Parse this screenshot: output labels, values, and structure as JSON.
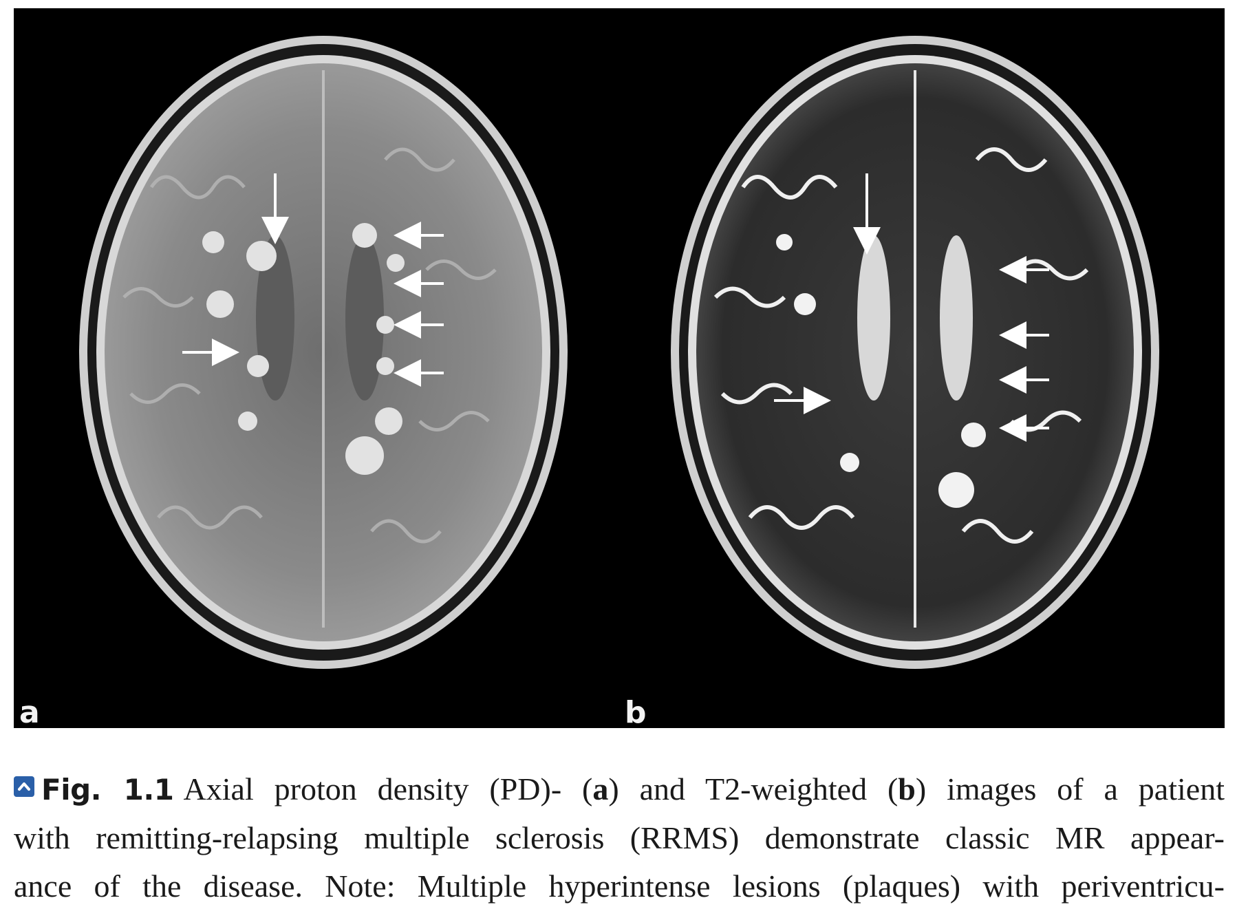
{
  "figure": {
    "panels": [
      {
        "label": "a",
        "sequence": "proton-density"
      },
      {
        "label": "b",
        "sequence": "t2-weighted"
      }
    ]
  },
  "caption": {
    "toggle_icon": "chevron-up-icon",
    "toggle_color": "#2a5fa8",
    "fig_ref": "Fig. 1.1",
    "line1_part1": "Axial proton density (PD)- (",
    "line1_a": "a",
    "line1_part2": ") and T2-weighted (",
    "line1_b": "b",
    "line1_part3": ") images of a patient",
    "line2": "with remitting-relapsing multiple sclerosis (RRMS) demonstrate classic MR appear-",
    "line3": "ance of the disease. Note: Multiple hyperintense lesions (plaques) with periventricu-"
  }
}
